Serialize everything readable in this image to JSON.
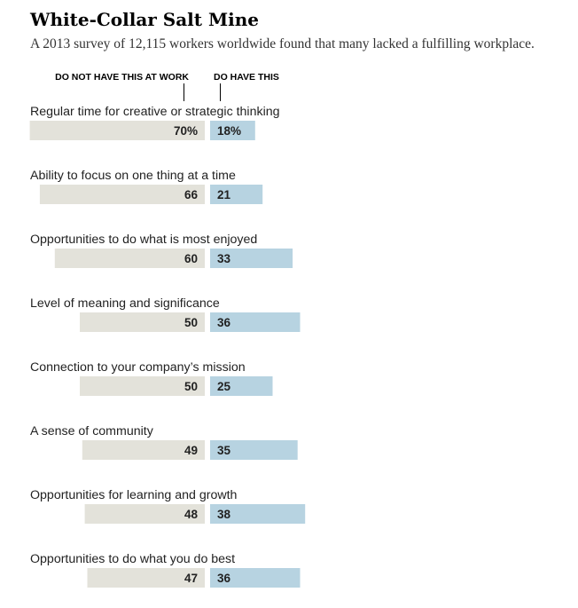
{
  "chart_data": {
    "type": "bar",
    "title": "White-Collar Salt Mine",
    "subtitle": "A 2013 survey of 12,115 workers worldwide found that many lacked a fulfilling workplace.",
    "series": [
      {
        "name": "DO NOT HAVE THIS AT WORK",
        "color": "#e3e2da",
        "values": [
          70,
          66,
          60,
          50,
          50,
          49,
          48,
          47
        ],
        "labels": [
          "70%",
          "66",
          "60",
          "50",
          "50",
          "49",
          "48",
          "47"
        ]
      },
      {
        "name": "DO HAVE THIS",
        "color": "#b7d3e1",
        "values": [
          18,
          21,
          33,
          36,
          25,
          35,
          38,
          36
        ],
        "labels": [
          "18%",
          "21",
          "33",
          "36",
          "25",
          "35",
          "38",
          "36"
        ]
      }
    ],
    "categories": [
      "Regular time for creative or strategic thinking",
      "Ability to focus on one thing at a time",
      "Opportunities to do what is most enjoyed",
      "Level of meaning and significance",
      "Connection to your company’s mission",
      "A sense of community",
      "Opportunities for learning and growth",
      "Opportunities to do what you do best"
    ],
    "unit": "%"
  }
}
